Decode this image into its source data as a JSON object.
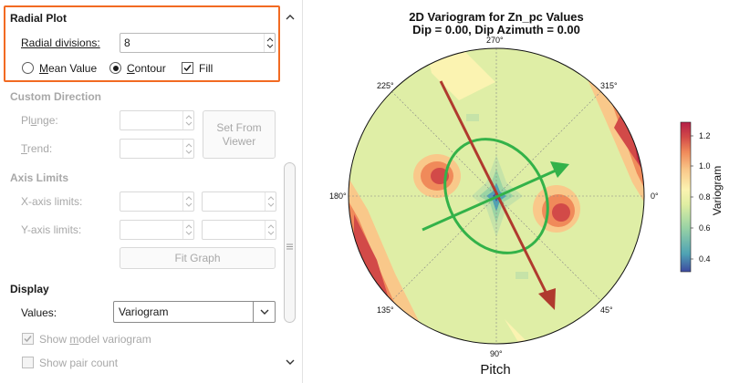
{
  "settings": {
    "radial_plot": {
      "heading": "Radial Plot",
      "radial_divisions_label": "Radial divisions:",
      "radial_divisions_value": "8",
      "mean_value_label": "Mean Value",
      "contour_label": "Contour",
      "fill_label": "Fill",
      "selected_mode": "Contour",
      "fill_checked": true
    },
    "custom_direction": {
      "heading": "Custom Direction",
      "plunge_label": "Plunge:",
      "trend_label": "Trend:",
      "set_from_viewer_label": "Set From Viewer"
    },
    "axis_limits": {
      "heading": "Axis Limits",
      "x_label": "X-axis limits:",
      "y_label": "Y-axis limits:",
      "fit_graph_label": "Fit Graph"
    },
    "display": {
      "heading": "Display",
      "values_label": "Values:",
      "values_selected": "Variogram",
      "show_model_label": "Show model variogram",
      "show_model_checked": true,
      "show_pair_label": "Show pair count",
      "show_pair_checked": false
    }
  },
  "plot": {
    "title_line1": "2D Variogram for Zn_pc Values",
    "title_line2": "Dip = 0.00, Dip Azimuth = 0.00",
    "angle_labels": {
      "a270": "270°",
      "a315": "315°",
      "a0": "0°",
      "a45": "45°",
      "a90": "90°",
      "a135": "135°",
      "a180": "180°",
      "a225": "225°"
    },
    "x_axis_label": "Pitch",
    "colorbar": {
      "label": "Variogram",
      "ticks": [
        "1.2",
        "1.0",
        "0.8",
        "0.6",
        "0.4"
      ],
      "range": [
        0.3,
        1.3
      ],
      "colors": [
        "#3d4aa0",
        "#4fa3b4",
        "#9bd4a4",
        "#e0eea2",
        "#fbf3b1",
        "#f9c88a",
        "#f08a5a",
        "#d24a48",
        "#b51f47"
      ]
    },
    "arrows": {
      "major_color": "#b03a2e",
      "minor_color": "#33b249",
      "ellipse_color": "#33b249"
    }
  }
}
